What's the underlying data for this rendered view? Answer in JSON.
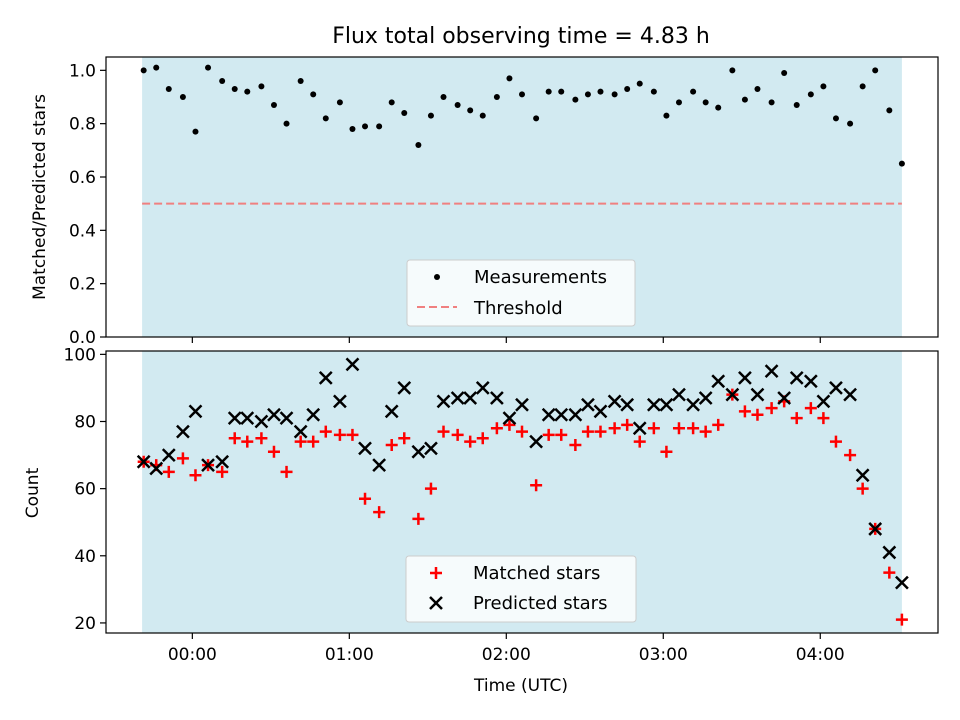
{
  "title": "Flux total observing time = 4.83 h",
  "colors": {
    "band": "#add8e6",
    "measurements": "#000000",
    "threshold": "#f08080",
    "matched": "#ff0000",
    "predicted": "#000000"
  },
  "chart_data": [
    {
      "type": "scatter",
      "ylabel": "Matched/Predicted stars",
      "ylim": [
        0.0,
        1.05
      ],
      "yticks": [
        "0.0",
        "0.2",
        "0.4",
        "0.6",
        "0.8",
        "1.0"
      ],
      "observing_window_hours": [
        -0.32,
        4.52
      ],
      "threshold": 0.5,
      "legend": [
        "Measurements",
        "Threshold"
      ],
      "legend_position": "lower center",
      "series": [
        {
          "name": "Measurements",
          "x": [
            -0.31,
            -0.23,
            -0.15,
            -0.06,
            0.02,
            0.1,
            0.19,
            0.27,
            0.35,
            0.44,
            0.52,
            0.6,
            0.69,
            0.77,
            0.85,
            0.94,
            1.02,
            1.1,
            1.19,
            1.27,
            1.35,
            1.44,
            1.52,
            1.6,
            1.69,
            1.77,
            1.85,
            1.94,
            2.02,
            2.1,
            2.19,
            2.27,
            2.35,
            2.44,
            2.52,
            2.6,
            2.69,
            2.77,
            2.85,
            2.94,
            3.02,
            3.1,
            3.19,
            3.27,
            3.35,
            3.44,
            3.52,
            3.6,
            3.69,
            3.77,
            3.85,
            3.94,
            4.02,
            4.1,
            4.19,
            4.27,
            4.35,
            4.44,
            4.52
          ],
          "y": [
            1.0,
            1.01,
            0.93,
            0.9,
            0.77,
            1.01,
            0.96,
            0.93,
            0.92,
            0.94,
            0.87,
            0.8,
            0.96,
            0.91,
            0.82,
            0.88,
            0.78,
            0.79,
            0.79,
            0.88,
            0.84,
            0.72,
            0.83,
            0.9,
            0.87,
            0.85,
            0.83,
            0.9,
            0.97,
            0.91,
            0.82,
            0.92,
            0.92,
            0.89,
            0.91,
            0.92,
            0.91,
            0.93,
            0.95,
            0.92,
            0.83,
            0.88,
            0.92,
            0.88,
            0.86,
            1.0,
            0.89,
            0.93,
            0.88,
            0.99,
            0.87,
            0.91,
            0.94,
            0.82,
            0.8,
            0.94,
            1.0,
            0.85,
            0.65
          ]
        }
      ]
    },
    {
      "type": "scatter",
      "xlabel": "Time (UTC)",
      "ylabel": "Count",
      "ylim": [
        17,
        101
      ],
      "yticks": [
        "20",
        "40",
        "60",
        "80",
        "100"
      ],
      "xlim": [
        -0.55,
        4.75
      ],
      "x_tick_values": [
        0,
        1,
        2,
        3,
        4
      ],
      "xticks": [
        "00:00",
        "01:00",
        "02:00",
        "03:00",
        "04:00"
      ],
      "legend": [
        "Matched stars",
        "Predicted stars"
      ],
      "legend_position": "lower center",
      "series": [
        {
          "name": "Matched stars",
          "x": [
            -0.31,
            -0.23,
            -0.15,
            -0.06,
            0.02,
            0.1,
            0.19,
            0.27,
            0.35,
            0.44,
            0.52,
            0.6,
            0.69,
            0.77,
            0.85,
            0.94,
            1.02,
            1.1,
            1.19,
            1.27,
            1.35,
            1.44,
            1.52,
            1.6,
            1.69,
            1.77,
            1.85,
            1.94,
            2.02,
            2.1,
            2.19,
            2.27,
            2.35,
            2.44,
            2.52,
            2.6,
            2.69,
            2.77,
            2.85,
            2.94,
            3.02,
            3.1,
            3.19,
            3.27,
            3.35,
            3.44,
            3.52,
            3.6,
            3.69,
            3.77,
            3.85,
            3.94,
            4.02,
            4.1,
            4.19,
            4.27,
            4.35,
            4.44,
            4.52
          ],
          "y": [
            68,
            67,
            65,
            69,
            64,
            67,
            65,
            75,
            74,
            75,
            71,
            65,
            74,
            74,
            77,
            76,
            76,
            57,
            53,
            73,
            75,
            51,
            60,
            77,
            76,
            74,
            75,
            78,
            79,
            77,
            61,
            76,
            76,
            73,
            77,
            77,
            78,
            79,
            74,
            78,
            71,
            78,
            78,
            77,
            79,
            88,
            83,
            82,
            84,
            86,
            81,
            84,
            81,
            74,
            70,
            60,
            48,
            35,
            21
          ]
        },
        {
          "name": "Predicted stars",
          "x": [
            -0.31,
            -0.23,
            -0.15,
            -0.06,
            0.02,
            0.1,
            0.19,
            0.27,
            0.35,
            0.44,
            0.52,
            0.6,
            0.69,
            0.77,
            0.85,
            0.94,
            1.02,
            1.1,
            1.19,
            1.27,
            1.35,
            1.44,
            1.52,
            1.6,
            1.69,
            1.77,
            1.85,
            1.94,
            2.02,
            2.1,
            2.19,
            2.27,
            2.35,
            2.44,
            2.52,
            2.6,
            2.69,
            2.77,
            2.85,
            2.94,
            3.02,
            3.1,
            3.19,
            3.27,
            3.35,
            3.44,
            3.52,
            3.6,
            3.69,
            3.77,
            3.85,
            3.94,
            4.02,
            4.1,
            4.19,
            4.27,
            4.35,
            4.44,
            4.52
          ],
          "y": [
            68,
            66,
            70,
            77,
            83,
            67,
            68,
            81,
            81,
            80,
            82,
            81,
            77,
            82,
            93,
            86,
            97,
            72,
            67,
            83,
            90,
            71,
            72,
            86,
            87,
            87,
            90,
            87,
            81,
            85,
            74,
            82,
            82,
            82,
            85,
            83,
            86,
            85,
            78,
            85,
            85,
            88,
            85,
            87,
            92,
            88,
            93,
            88,
            95,
            87,
            93,
            92,
            86,
            90,
            88,
            64,
            48,
            41,
            32
          ]
        }
      ]
    }
  ]
}
